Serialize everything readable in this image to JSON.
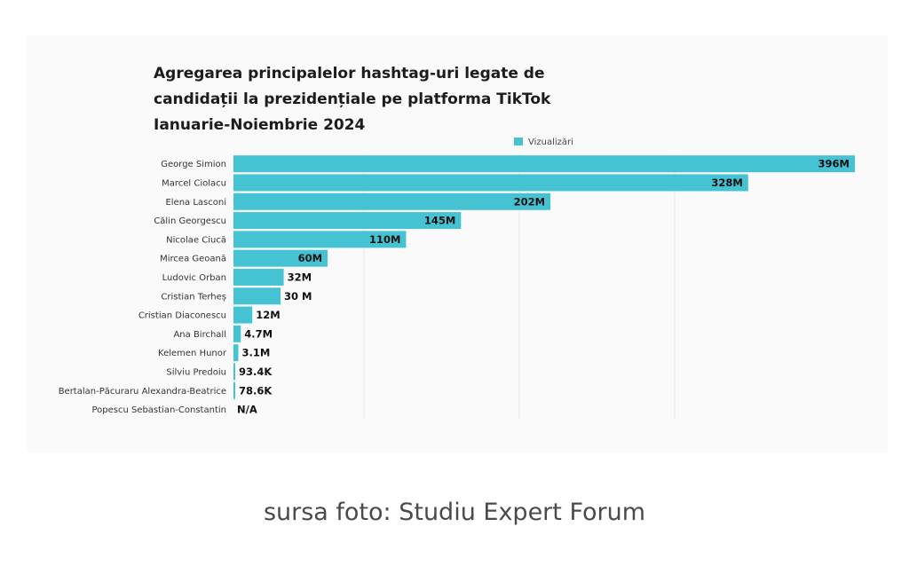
{
  "chart_data": {
    "type": "bar",
    "orientation": "horizontal",
    "title": [
      "Agregarea principalelor hashtag-uri legate de",
      "candidații la prezidențiale pe platforma TikTok",
      "Ianuarie-Noiembrie 2024"
    ],
    "legend": {
      "label": "Vizualizări",
      "position": "top-right",
      "color": "#45c3d3"
    },
    "bar_color": "#45c3d3",
    "grid": true,
    "categories": [
      "George Simion",
      "Marcel Ciolacu",
      "Elena Lasconi",
      "Călin Georgescu",
      "Nicolae Ciucă",
      "Mircea Geoană",
      "Ludovic Orban",
      "Cristian Terheș",
      "Cristian Diaconescu",
      "Ana Birchall",
      "Kelemen Hunor",
      "Silviu Predoiu",
      "Bertalan-Păcuraru Alexandra-Beatrice",
      "Popescu Sebastian-Constantin"
    ],
    "values": [
      396000000,
      328000000,
      202000000,
      145000000,
      110000000,
      60000000,
      32000000,
      30000000,
      12000000,
      4700000,
      3100000,
      93400,
      78600,
      null
    ],
    "value_labels": [
      "396M",
      "328M",
      "202M",
      "145M",
      "110M",
      "60M",
      "32M",
      "30 M",
      "12M",
      "4.7M",
      "3.1M",
      "93.4K",
      "78.6K",
      "N/A"
    ],
    "xlim": [
      0,
      396000000
    ]
  },
  "caption": "sursa foto: Studiu Expert Forum"
}
